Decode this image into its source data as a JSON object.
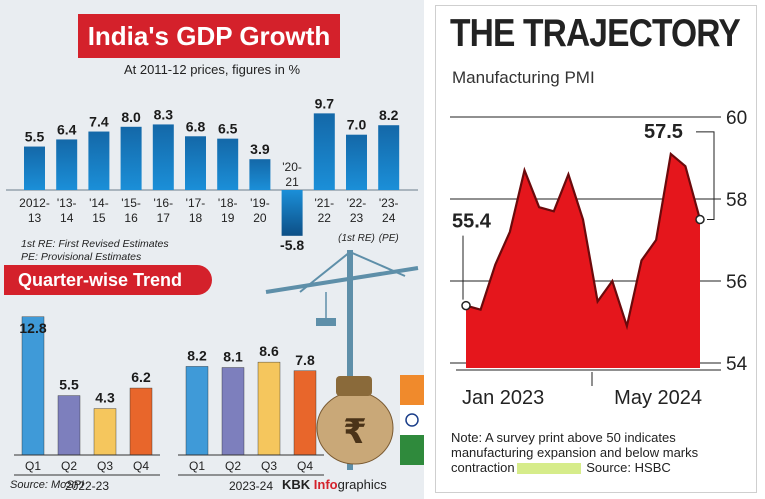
{
  "chart_data": [
    {
      "type": "bar",
      "title": "India's GDP Growth",
      "subtitle": "At 2011-12 prices, figures in %",
      "categories": [
        {
          "top": "2012-",
          "bottom": "13"
        },
        {
          "top": "'13-",
          "bottom": "14"
        },
        {
          "top": "'14-",
          "bottom": "15"
        },
        {
          "top": "'15-",
          "bottom": "16"
        },
        {
          "top": "'16-",
          "bottom": "17"
        },
        {
          "top": "'17-",
          "bottom": "18"
        },
        {
          "top": "'18-",
          "bottom": "19"
        },
        {
          "top": "'19-",
          "bottom": "20"
        },
        {
          "top": "'20-",
          "bottom": "21"
        },
        {
          "top": "'21-",
          "bottom": "22"
        },
        {
          "top": "'22-",
          "bottom": "23"
        },
        {
          "top": "'23-",
          "bottom": "24"
        }
      ],
      "values": [
        5.5,
        6.4,
        7.4,
        8.0,
        8.3,
        6.8,
        6.5,
        3.9,
        -5.8,
        9.7,
        7.0,
        8.2
      ],
      "value_labels": [
        "5.5",
        "6.4",
        "7.4",
        "8.0",
        "8.3",
        "6.8",
        "6.5",
        "3.9",
        "-5.8",
        "9.7",
        "7.0",
        "8.2"
      ],
      "annotations": [
        "(1st RE)",
        "(PE)"
      ],
      "notes": [
        "1st RE: First Revised Estimates",
        "PE: Provisional Estimates"
      ]
    },
    {
      "type": "bar",
      "title": "Quarter-wise Trend",
      "groups": [
        {
          "name": "2022-23",
          "categories": [
            "Q1",
            "Q2",
            "Q3",
            "Q4"
          ],
          "values": [
            12.8,
            5.5,
            4.3,
            6.2
          ],
          "value_labels": [
            "12.8",
            "5.5",
            "4.3",
            "6.2"
          ],
          "colors": [
            "#3f9ad8",
            "#7d7fbd",
            "#f5c65d",
            "#e8662b"
          ]
        },
        {
          "name": "2023-24",
          "categories": [
            "Q1",
            "Q2",
            "Q3",
            "Q4"
          ],
          "values": [
            8.2,
            8.1,
            8.6,
            7.8
          ],
          "value_labels": [
            "8.2",
            "8.1",
            "8.6",
            "7.8"
          ],
          "colors": [
            "#3f9ad8",
            "#7d7fbd",
            "#f5c65d",
            "#e8662b"
          ]
        }
      ],
      "source": "Source: MoSPI",
      "credit": {
        "brand": "KBK",
        "highlight": "Info",
        "rest": "graphics"
      }
    },
    {
      "type": "area",
      "title": "THE TRAJECTORY",
      "subtitle": "Manufacturing PMI",
      "ylim": [
        53.5,
        60
      ],
      "yticks": [
        54,
        56,
        58,
        60
      ],
      "x_labels": [
        "Jan 2023",
        "May 2024"
      ],
      "series": [
        {
          "name": "Manufacturing PMI",
          "values": [
            55.4,
            55.3,
            56.4,
            57.2,
            58.7,
            57.8,
            57.7,
            58.6,
            57.5,
            55.5,
            56.0,
            54.9,
            56.5,
            57.0,
            59.1,
            58.8,
            57.5
          ],
          "color": "#e5161c"
        }
      ],
      "callouts": [
        {
          "index": 0,
          "label": "55.4"
        },
        {
          "index": 16,
          "label": "57.5"
        }
      ],
      "note": [
        "Note: A survey print above 50 indicates manufacturing expansion and below marks contraction",
        "Source: HSBC"
      ]
    }
  ]
}
